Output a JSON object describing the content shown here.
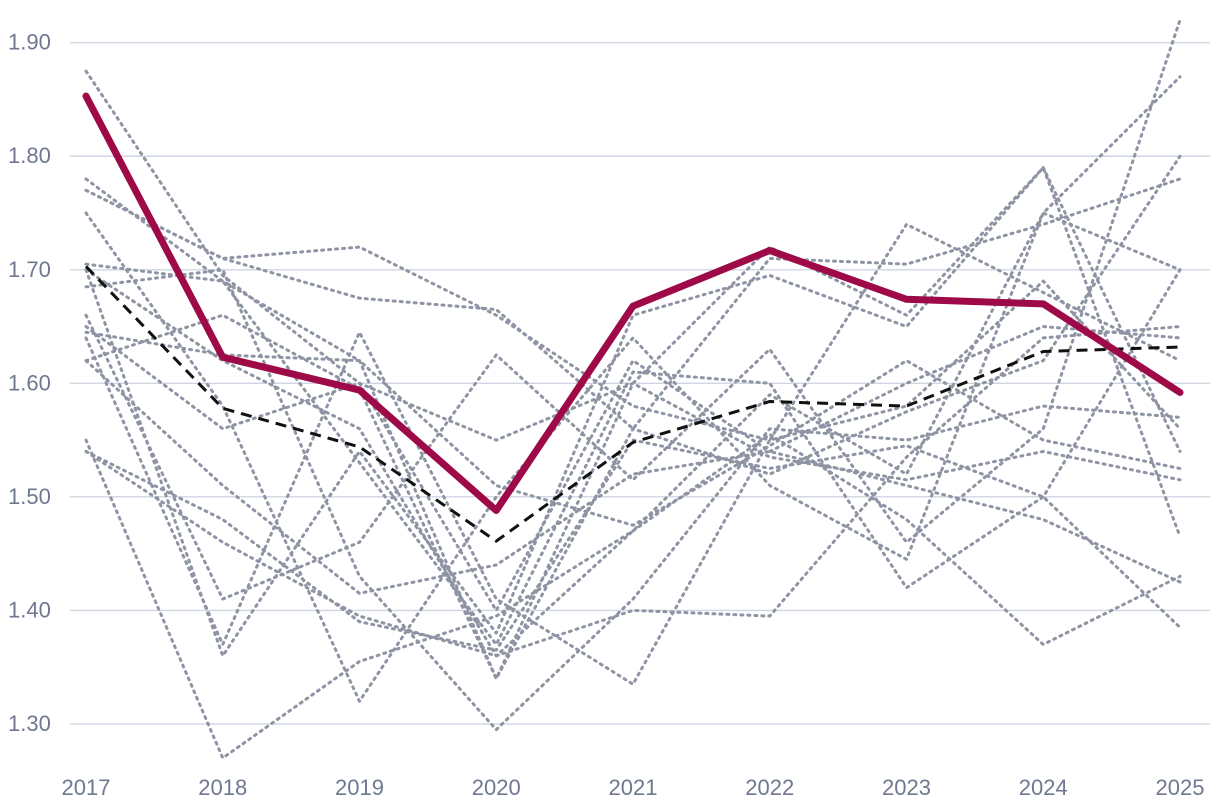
{
  "chart_data": {
    "type": "line",
    "title": "",
    "xlabel": "",
    "ylabel": "",
    "x": [
      2017,
      2018,
      2019,
      2020,
      2021,
      2022,
      2023,
      2024,
      2025
    ],
    "x_tick_labels": [
      "2017",
      "2018",
      "2019",
      "2020",
      "2021",
      "2022",
      "2023",
      "2024",
      "2025"
    ],
    "ylim": [
      1.27,
      1.92
    ],
    "y_ticks": [
      1.3,
      1.4,
      1.5,
      1.6,
      1.7,
      1.8,
      1.9
    ],
    "y_tick_labels": [
      "1.30",
      "1.40",
      "1.50",
      "1.60",
      "1.70",
      "1.80",
      "1.90"
    ],
    "grid": "horizontal",
    "legend": "none",
    "colors": {
      "background_series": "#8e94a3",
      "average_series": "#111111",
      "highlight_series": "#9e0a47",
      "grid": "#cfd5e1",
      "tick_text": "#6f7890"
    },
    "highlight_series": {
      "values": [
        1.853,
        1.623,
        1.594,
        1.488,
        1.668,
        1.717,
        1.674,
        1.67,
        1.592
      ]
    },
    "average_series": {
      "values": [
        1.703,
        1.578,
        1.544,
        1.461,
        1.548,
        1.584,
        1.58,
        1.628,
        1.632
      ]
    },
    "background_series": [
      {
        "values": [
          1.875,
          1.695,
          1.6,
          1.55,
          1.6,
          1.535,
          1.515,
          1.54,
          1.515
        ]
      },
      {
        "values": [
          1.78,
          1.69,
          1.62,
          1.34,
          1.6,
          1.72,
          1.66,
          1.79,
          1.54
        ]
      },
      {
        "values": [
          1.77,
          1.71,
          1.72,
          1.66,
          1.58,
          1.55,
          1.74,
          1.68,
          1.62
        ]
      },
      {
        "values": [
          1.77,
          1.71,
          1.675,
          1.665,
          1.56,
          1.71,
          1.705,
          1.74,
          1.78
        ]
      },
      {
        "values": [
          1.75,
          1.58,
          1.32,
          1.5,
          1.64,
          1.51,
          1.445,
          1.75,
          1.87
        ]
      },
      {
        "values": [
          1.705,
          1.69,
          1.53,
          1.37,
          1.61,
          1.6,
          1.42,
          1.5,
          1.7
        ]
      },
      {
        "values": [
          1.7,
          1.36,
          1.54,
          1.38,
          1.66,
          1.695,
          1.65,
          1.79,
          1.465
        ]
      },
      {
        "values": [
          1.685,
          1.7,
          1.43,
          1.295,
          1.41,
          1.56,
          1.55,
          1.58,
          1.57
        ]
      },
      {
        "values": [
          1.66,
          1.41,
          1.46,
          1.625,
          1.515,
          1.63,
          1.46,
          1.56,
          1.92
        ]
      },
      {
        "values": [
          1.645,
          1.625,
          1.62,
          1.51,
          1.475,
          1.545,
          1.62,
          1.55,
          1.525
        ]
      },
      {
        "values": [
          1.64,
          1.37,
          1.645,
          1.41,
          1.335,
          1.55,
          1.58,
          1.69,
          1.56
        ]
      },
      {
        "values": [
          1.62,
          1.51,
          1.415,
          1.44,
          1.52,
          1.54,
          1.51,
          1.48,
          1.425
        ]
      },
      {
        "values": [
          1.55,
          1.27,
          1.355,
          1.395,
          1.47,
          1.555,
          1.48,
          1.37,
          1.43
        ]
      },
      {
        "values": [
          1.54,
          1.46,
          1.395,
          1.36,
          1.4,
          1.395,
          1.535,
          1.64,
          1.65
        ]
      },
      {
        "values": [
          1.54,
          1.48,
          1.39,
          1.365,
          1.55,
          1.525,
          1.545,
          1.5,
          1.385
        ]
      },
      {
        "values": [
          1.62,
          1.66,
          1.595,
          1.34,
          1.56,
          1.52,
          1.575,
          1.62,
          1.8
        ]
      },
      {
        "values": [
          1.7,
          1.62,
          1.56,
          1.36,
          1.47,
          1.59,
          1.52,
          1.75,
          1.7
        ]
      },
      {
        "values": [
          1.65,
          1.56,
          1.6,
          1.4,
          1.62,
          1.54,
          1.6,
          1.65,
          1.64
        ]
      }
    ]
  }
}
